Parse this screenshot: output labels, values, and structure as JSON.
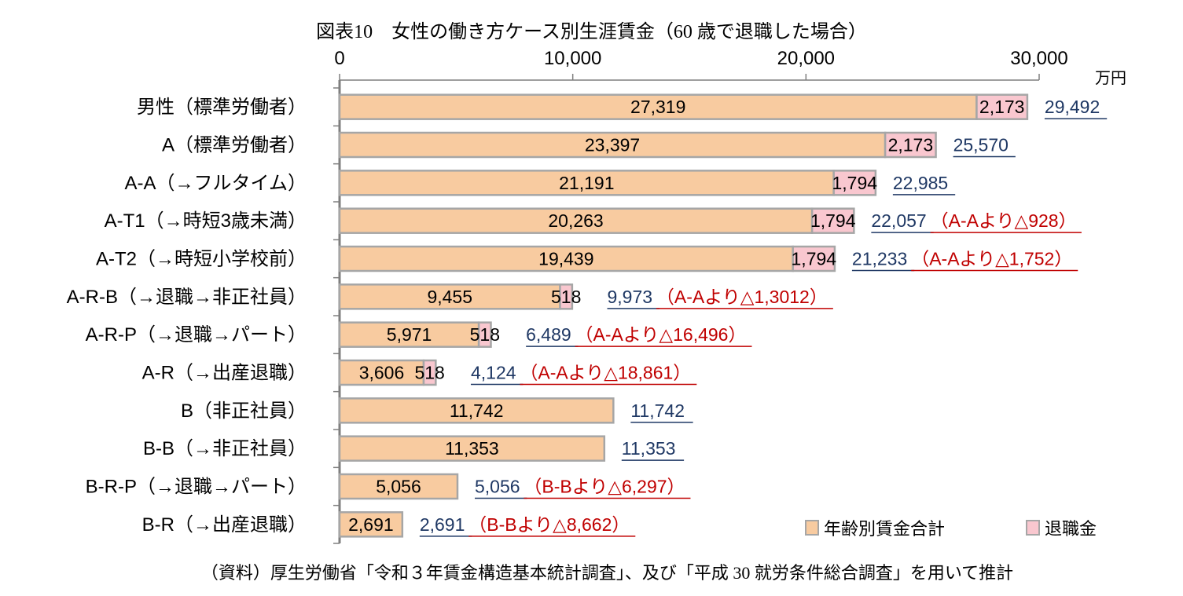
{
  "chart_data": {
    "type": "bar",
    "orientation": "horizontal",
    "stacked": true,
    "title": "図表10　女性の働き方ケース別生涯賃金（60 歳で退職した場合）",
    "unit": "万円",
    "xlim": [
      0,
      30000
    ],
    "x_ticks": [
      "0",
      "10,000",
      "20,000",
      "30,000"
    ],
    "x_axis_position": "top",
    "grid": false,
    "legend_position": "bottom-right",
    "categories": [
      "男性（標準労働者）",
      "A（標準労働者）",
      "A-A（→フルタイム）",
      "A-T1（→時短3歳未満）",
      "A-T2（→時短小学校前）",
      "A-R-B（→退職→非正社員）",
      "A-R-P（→退職→パート）",
      "A-R（→出産退職）",
      "B（非正社員）",
      "B-B（→非正社員）",
      "B-R-P（→退職→パート）",
      "B-R（→出産退職）"
    ],
    "series": [
      {
        "name": "年齢別賃金合計",
        "color": "#f8cba0",
        "values": [
          27319,
          23397,
          21191,
          20263,
          19439,
          9455,
          5971,
          3606,
          11742,
          11353,
          5056,
          2691
        ],
        "labels": [
          "27,319",
          "23,397",
          "21,191",
          "20,263",
          "19,439",
          "9,455",
          "5,971",
          "3,606",
          "11,742",
          "11,353",
          "5,056",
          "2,691"
        ]
      },
      {
        "name": "退職金",
        "color": "#f9c7cf",
        "values": [
          2173,
          2173,
          1794,
          1794,
          1794,
          518,
          518,
          518,
          0,
          0,
          0,
          0
        ],
        "labels": [
          "2,173",
          "2,173",
          "1,794",
          "1,794",
          "1,794",
          "518",
          "518",
          "518",
          "",
          "",
          "",
          ""
        ]
      }
    ],
    "totals": [
      "29,492",
      "25,570",
      "22,985",
      "22,057",
      "21,233",
      "9,973",
      "6,489",
      "4,124",
      "11,742",
      "11,353",
      "5,056",
      "2,691"
    ],
    "differences": [
      "",
      "",
      "",
      "（A-Aより△928）",
      "（A-Aより△1,752）",
      "（A-Aより△1,3012）",
      "（A-Aより△16,496）",
      "（A-Aより△18,861）",
      "",
      "",
      "（B-Bより△6,297）",
      "（B-Bより△8,662）"
    ]
  },
  "source_note": "（資料）厚生労働省「令和３年賃金構造基本統計調査」、及び「平成 30 就労条件総合調査」を用いて推計",
  "colors": {
    "bar_border": "#a6a6a6",
    "axis": "#7f7f7f",
    "total_text": "#1f3864",
    "diff_text": "#c00000"
  }
}
